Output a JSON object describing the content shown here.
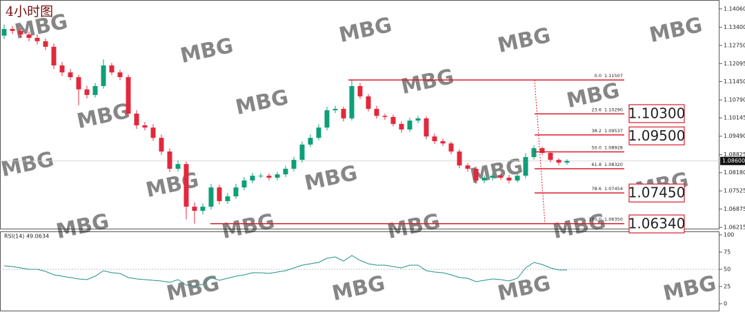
{
  "watermark": "MBG",
  "chart_data": [
    {
      "type": "candlestick",
      "title": "4小时图",
      "up_color": "#0e9f78",
      "down_color": "#e2283c",
      "fib_color": "#d91a2a",
      "ylim": [
        1.0617,
        1.1433
      ],
      "yticks": [
        {
          "value": 1.1406,
          "label": "1.14060"
        },
        {
          "value": 1.134,
          "label": "1.13400"
        },
        {
          "value": 1.1275,
          "label": "1.12750"
        },
        {
          "value": 1.12095,
          "label": "1.12095"
        },
        {
          "value": 1.1145,
          "label": "1.11450"
        },
        {
          "value": 1.1079,
          "label": "1.10790"
        },
        {
          "value": 1.10145,
          "label": "1.10145"
        },
        {
          "value": 1.0949,
          "label": "1.09490"
        },
        {
          "value": 1.08825,
          "label": "1.08825"
        },
        {
          "value": 1.0818,
          "label": "1.08180"
        },
        {
          "value": 1.07525,
          "label": "1.07525"
        },
        {
          "value": 1.06875,
          "label": "1.06875"
        },
        {
          "value": 1.06215,
          "label": "1.06215"
        }
      ],
      "last_price": {
        "value": 1.086,
        "label": "1.08600"
      },
      "open": [
        1.131,
        1.1334,
        1.1327,
        1.1314,
        1.1302,
        1.129,
        1.127,
        1.1203,
        1.1178,
        1.1161,
        1.1117,
        1.1097,
        1.1129,
        1.1203,
        1.1178,
        1.1161,
        1.103,
        1.0988,
        1.098,
        1.0943,
        1.0894,
        1.0832,
        1.0849,
        1.0696,
        1.0681,
        1.0696,
        1.0765,
        1.0716,
        1.0733,
        1.0765,
        1.079,
        1.0807,
        1.0807,
        1.08,
        1.0812,
        1.0832,
        1.0864,
        1.0919,
        1.0943,
        1.098,
        1.1042,
        1.1047,
        1.1013,
        1.1129,
        1.1092,
        1.1047,
        1.1022,
        1.1018,
        1.0993,
        1.0973,
        1.1005,
        1.1013,
        1.0948,
        1.0931,
        1.0923,
        1.0894,
        1.0844,
        1.0832,
        1.079,
        1.08,
        1.0807,
        1.08,
        1.079,
        1.0807,
        1.0874,
        1.0906,
        1.0889,
        1.0864,
        1.0854
      ],
      "high": [
        1.135,
        1.1345,
        1.1338,
        1.1325,
        1.1315,
        1.13,
        1.1282,
        1.1215,
        1.119,
        1.117,
        1.113,
        1.114,
        1.1225,
        1.1212,
        1.1188,
        1.117,
        1.1042,
        1.1,
        1.0992,
        1.0955,
        1.0905,
        1.0862,
        1.0858,
        1.0712,
        1.0708,
        1.0778,
        1.0775,
        1.0745,
        1.0778,
        1.0802,
        1.0818,
        1.0816,
        1.0815,
        1.0822,
        1.0843,
        1.0875,
        1.093,
        1.0955,
        1.0992,
        1.1055,
        1.1058,
        1.1055,
        1.1151,
        1.114,
        1.11,
        1.1058,
        1.103,
        1.1026,
        1.1002,
        1.1015,
        1.1022,
        1.102,
        1.0958,
        1.094,
        1.093,
        1.0902,
        1.0852,
        1.084,
        1.0808,
        1.0815,
        1.0814,
        1.081,
        1.0815,
        1.0888,
        1.0916,
        1.0912,
        1.0895,
        1.087,
        1.0866
      ],
      "low": [
        1.1298,
        1.1316,
        1.1304,
        1.129,
        1.1278,
        1.1258,
        1.119,
        1.1165,
        1.115,
        1.106,
        1.1085,
        1.1088,
        1.112,
        1.1168,
        1.115,
        1.102,
        1.0975,
        1.097,
        1.0932,
        1.0882,
        1.082,
        1.0822,
        1.065,
        1.0635,
        1.0668,
        1.0686,
        1.0705,
        1.0706,
        1.0724,
        1.0755,
        1.078,
        1.0798,
        1.079,
        1.079,
        1.0802,
        1.0822,
        1.0855,
        1.091,
        1.0934,
        1.097,
        1.1032,
        1.1002,
        1.1005,
        1.1082,
        1.1038,
        1.1012,
        1.1008,
        1.0984,
        1.0962,
        1.0964,
        1.0996,
        1.0938,
        1.0921,
        1.0914,
        1.0884,
        1.0834,
        1.0822,
        1.0778,
        1.078,
        1.079,
        1.0792,
        1.078,
        1.0782,
        1.0798,
        1.0865,
        1.088,
        1.0855,
        1.0845,
        1.0846
      ],
      "close": [
        1.1334,
        1.1327,
        1.1314,
        1.1302,
        1.129,
        1.127,
        1.1203,
        1.1178,
        1.1161,
        1.1117,
        1.1097,
        1.1129,
        1.1203,
        1.1178,
        1.1161,
        1.103,
        1.0988,
        1.098,
        1.0943,
        1.0894,
        1.0832,
        1.0849,
        1.0696,
        1.0681,
        1.0696,
        1.0765,
        1.0716,
        1.0733,
        1.0765,
        1.079,
        1.0807,
        1.0807,
        1.08,
        1.0812,
        1.0832,
        1.0864,
        1.0919,
        1.0943,
        1.098,
        1.1042,
        1.1047,
        1.1013,
        1.1129,
        1.1092,
        1.1047,
        1.1022,
        1.1018,
        1.0993,
        1.0973,
        1.1005,
        1.1013,
        1.0948,
        1.0931,
        1.0923,
        1.0894,
        1.0844,
        1.0832,
        1.079,
        1.08,
        1.0807,
        1.08,
        1.079,
        1.0807,
        1.0874,
        1.0906,
        1.0889,
        1.0864,
        1.0854,
        1.086
      ],
      "fib_levels": [
        {
          "level": "0.0",
          "value": 1.11507,
          "label": "1.11507"
        },
        {
          "level": "23.6",
          "value": 1.1029,
          "label": "1.10290"
        },
        {
          "level": "38.2",
          "value": 1.09537,
          "label": "1.09537"
        },
        {
          "level": "50.0",
          "value": 1.08928,
          "label": "1.08928"
        },
        {
          "level": "61.8",
          "value": 1.0832,
          "label": "1.08320"
        },
        {
          "level": "78.6",
          "value": 1.07454,
          "label": "1.07454"
        },
        {
          "level": "100.0",
          "value": 1.0635,
          "label": "1.06350"
        }
      ],
      "annotations": [
        {
          "value": 1.103,
          "label": "1.10300"
        },
        {
          "value": 1.095,
          "label": "1.09500"
        },
        {
          "value": 1.0745,
          "label": "1.07450"
        },
        {
          "value": 1.0634,
          "label": "1.06340"
        }
      ]
    },
    {
      "type": "line",
      "title": "RSI(14) 49.0634",
      "color": "#1f8f86",
      "ylim": [
        0,
        100
      ],
      "yticks": [
        0,
        25,
        50,
        75,
        100
      ],
      "values": [
        55,
        54,
        52,
        50,
        50,
        47,
        42,
        40,
        38,
        36,
        35,
        40,
        48,
        45,
        44,
        38,
        36,
        35,
        34,
        33,
        31,
        35,
        27,
        26,
        28,
        38,
        34,
        37,
        40,
        42,
        45,
        45,
        44,
        46,
        48,
        52,
        56,
        58,
        60,
        66,
        68,
        62,
        70,
        63,
        58,
        56,
        56,
        54,
        52,
        56,
        56,
        48,
        46,
        45,
        42,
        38,
        37,
        32,
        34,
        36,
        35,
        33,
        37,
        52,
        60,
        57,
        52,
        49,
        49
      ]
    }
  ]
}
